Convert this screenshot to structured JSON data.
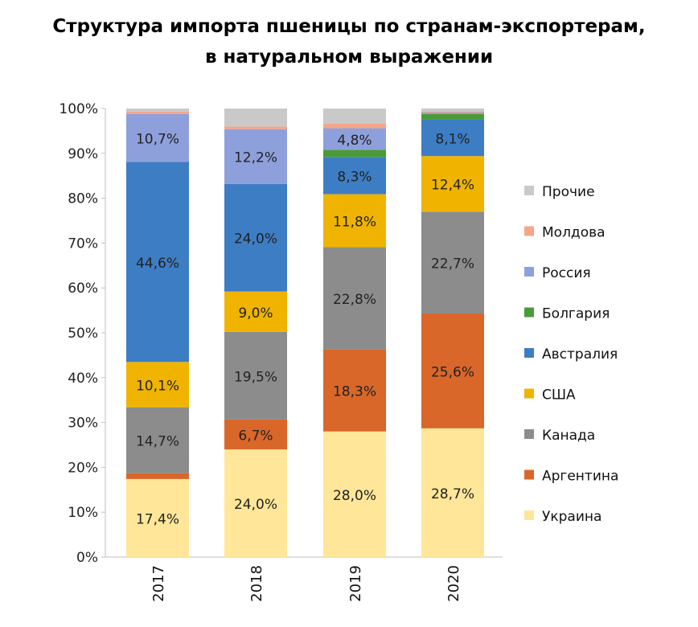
{
  "chart_data": {
    "type": "bar",
    "stacked": true,
    "title": "Структура импорта пшеницы по странам-экспортерам, в натуральном выражении",
    "title_lines": [
      "Структура импорта пшеницы по странам-экспортерам,",
      "в натуральном выражении"
    ],
    "categories": [
      "2017",
      "2018",
      "2019",
      "2020"
    ],
    "ylim": [
      0,
      100
    ],
    "yticks": [
      "0%",
      "10%",
      "20%",
      "30%",
      "40%",
      "50%",
      "60%",
      "70%",
      "80%",
      "90%",
      "100%"
    ],
    "legend_position": "right",
    "grid": false,
    "series": [
      {
        "name": "Украина",
        "color": "#FFE699",
        "values": [
          17.4,
          24.0,
          28.0,
          28.7
        ],
        "labels": [
          "17,4%",
          "24,0%",
          "28,0%",
          "28,7%"
        ]
      },
      {
        "name": "Аргентина",
        "color": "#D9672A",
        "values": [
          1.3,
          6.7,
          18.3,
          25.6
        ],
        "labels": [
          "",
          "6,7%",
          "18,3%",
          "25,6%"
        ]
      },
      {
        "name": "Канада",
        "color": "#8C8C8C",
        "values": [
          14.7,
          19.5,
          22.8,
          22.7
        ],
        "labels": [
          "14,7%",
          "19,5%",
          "22,8%",
          "22,7%"
        ]
      },
      {
        "name": "США",
        "color": "#F0B400",
        "values": [
          10.1,
          9.0,
          11.8,
          12.4
        ],
        "labels": [
          "10,1%",
          "9,0%",
          "11,8%",
          "12,4%"
        ]
      },
      {
        "name": "Австралия",
        "color": "#3D7DC4",
        "values": [
          44.6,
          24.0,
          8.3,
          8.1
        ],
        "labels": [
          "44,6%",
          "24,0%",
          "8,3%",
          "8,1%"
        ]
      },
      {
        "name": "Болгария",
        "color": "#4A9A3A",
        "values": [
          0.0,
          0.0,
          1.6,
          1.3
        ],
        "labels": [
          "",
          "",
          "",
          ""
        ]
      },
      {
        "name": "Россия",
        "color": "#8EA0DC",
        "values": [
          10.7,
          12.2,
          4.8,
          0.3
        ],
        "labels": [
          "10,7%",
          "12,2%",
          "4,8%",
          ""
        ]
      },
      {
        "name": "Молдова",
        "color": "#F4A58A",
        "values": [
          0.5,
          0.6,
          1.0,
          0.3
        ],
        "labels": [
          "",
          "",
          "",
          ""
        ]
      },
      {
        "name": "Прочие",
        "color": "#C9C9C9",
        "values": [
          0.7,
          4.0,
          3.4,
          0.6
        ],
        "labels": [
          "",
          "",
          "",
          ""
        ]
      }
    ]
  }
}
